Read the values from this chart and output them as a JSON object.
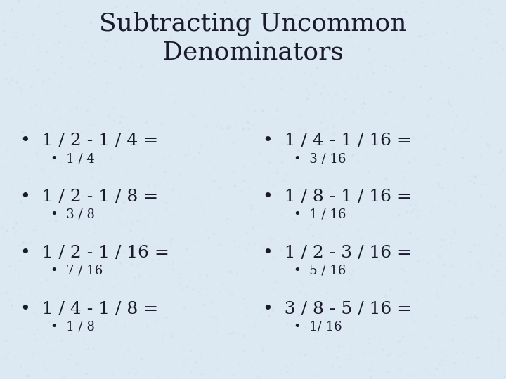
{
  "title": "Subtracting Uncommon\nDenominators",
  "background_color": "#dce8f2",
  "title_fontsize": 26,
  "title_font": "DejaVu Serif",
  "text_color": "#1a1a2e",
  "left_items": [
    {
      "bullet": "1 / 2 - 1 / 4 =",
      "answer": "1 / 4"
    },
    {
      "bullet": "1 / 2 - 1 / 8 =",
      "answer": "3 / 8"
    },
    {
      "bullet": "1 / 2 - 1 / 16 =",
      "answer": "7 / 16"
    },
    {
      "bullet": "1 / 4 - 1 / 8 =",
      "answer": "1 / 8"
    }
  ],
  "right_items": [
    {
      "bullet": "1 / 4 - 1 / 16 =",
      "answer": "3 / 16"
    },
    {
      "bullet": "1 / 8 - 1 / 16 =",
      "answer": "1 / 16"
    },
    {
      "bullet": "1 / 2 - 3 / 16 =",
      "answer": "5 / 16"
    },
    {
      "bullet": "3 / 8 - 5 / 16 =",
      "answer": "1/ 16"
    }
  ],
  "bullet_fontsize": 18,
  "answer_fontsize": 13,
  "bullet_font": "DejaVu Serif",
  "answer_font": "DejaVu Serif"
}
